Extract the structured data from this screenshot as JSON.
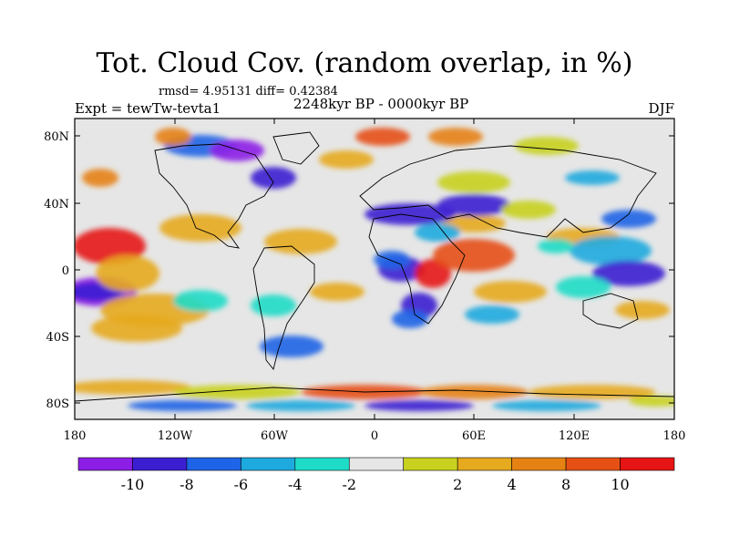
{
  "title": "Tot. Cloud Cov. (random overlap, in %)",
  "stats": "rmsd= 4.95131 diff= 0.42384",
  "experiment": "Expt = tewTw-tevta1",
  "period": "2248kyr BP - 0000kyr BP",
  "season": "DJF",
  "lon_ticks": [
    "180",
    "120W",
    "60W",
    "0",
    "60E",
    "120E",
    "180"
  ],
  "lat_ticks": [
    "80N",
    "40N",
    "0",
    "40S",
    "80S"
  ],
  "colorbar": {
    "colors": [
      "#8c1ee6",
      "#3c1ed2",
      "#1e64e6",
      "#1eaade",
      "#1edcc8",
      "#e6e6e6",
      "#c8d21e",
      "#e6aa1e",
      "#e68214",
      "#e65014",
      "#e61414"
    ],
    "labels": [
      "-10",
      "-8",
      "-6",
      "-4",
      "-2",
      "2",
      "4",
      "8",
      "10"
    ]
  }
}
